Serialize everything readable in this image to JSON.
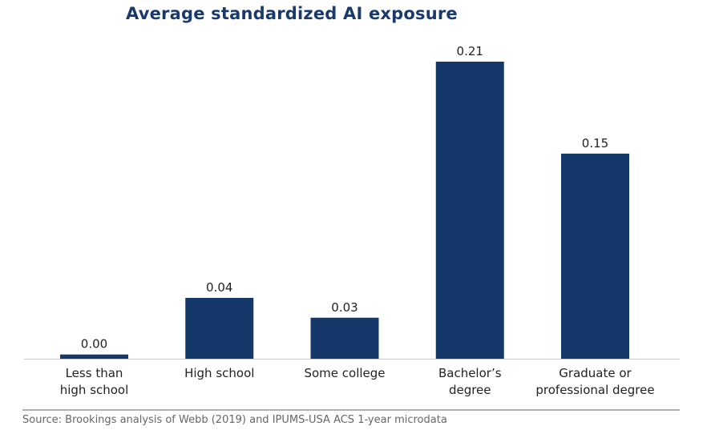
{
  "chart_data": {
    "type": "bar",
    "title": "Average standardized AI exposure",
    "categories": [
      [
        "Less than",
        "high school"
      ],
      [
        "High school"
      ],
      [
        "Some college"
      ],
      [
        "Bachelor’s",
        "degree"
      ],
      [
        "Graduate or",
        "professional degree"
      ]
    ],
    "values": [
      0.003,
      0.043,
      0.029,
      0.21,
      0.145
    ],
    "data_labels": [
      "0.00",
      "0.04",
      "0.03",
      "0.21",
      "0.15"
    ],
    "ylim": [
      0,
      0.21
    ],
    "grid": false,
    "bar_color": "#14386a",
    "source": "Source: Brookings analysis of Webb (2019) and IPUMS-USA ACS 1-year microdata"
  }
}
